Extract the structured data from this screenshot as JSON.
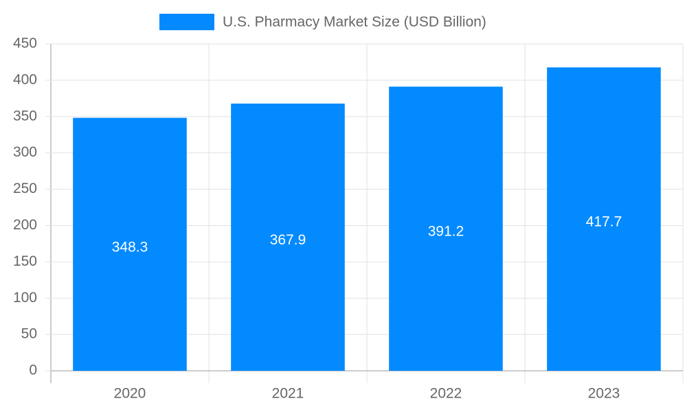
{
  "chart_data": {
    "type": "bar",
    "categories": [
      "2020",
      "2021",
      "2022",
      "2023"
    ],
    "series": [
      {
        "name": "U.S. Pharmacy Market Size (USD Billion)",
        "color": "#038aff",
        "values": [
          348.3,
          367.9,
          391.2,
          417.7
        ]
      }
    ],
    "ylim": [
      0,
      450
    ],
    "yticks": [
      0,
      50,
      100,
      150,
      200,
      250,
      300,
      350,
      400,
      450
    ],
    "grid": true,
    "legend": "top"
  }
}
